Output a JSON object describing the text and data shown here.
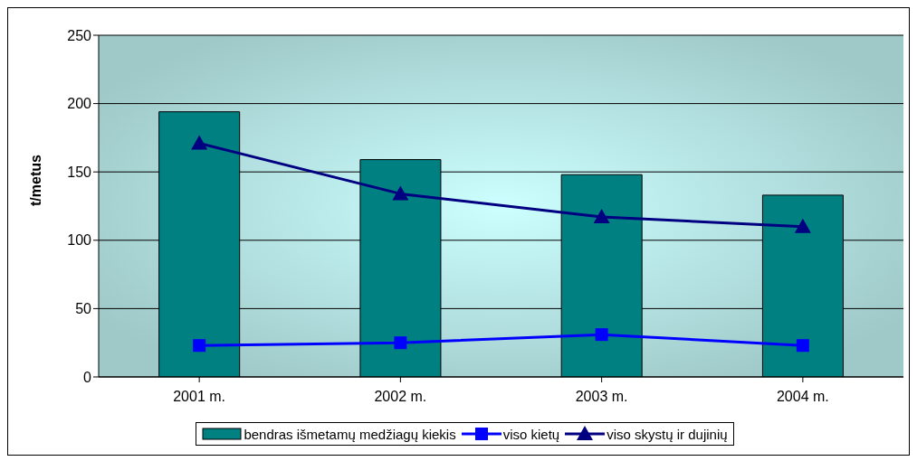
{
  "chart_data": {
    "type": "bar",
    "ylabel": "t/metus",
    "categories": [
      "2001 m.",
      "2002 m.",
      "2003 m.",
      "2004 m."
    ],
    "series": [
      {
        "name": "bendras išmetamų medžiagų kiekis",
        "color": "#008080",
        "values": [
          194,
          159,
          148,
          133
        ]
      },
      {
        "name": "viso kietų",
        "type": "line",
        "color": "#0000ff",
        "marker": "square",
        "values": [
          23,
          25,
          31,
          23
        ]
      },
      {
        "name": "viso skystų ir dujinių",
        "type": "line",
        "color": "#000080",
        "marker": "triangle",
        "values": [
          171,
          134,
          117,
          110
        ]
      }
    ],
    "ylim": [
      0,
      250
    ],
    "yticks": [
      0,
      50,
      100,
      150,
      200,
      250
    ],
    "grid": "y",
    "legend": "bottom"
  }
}
